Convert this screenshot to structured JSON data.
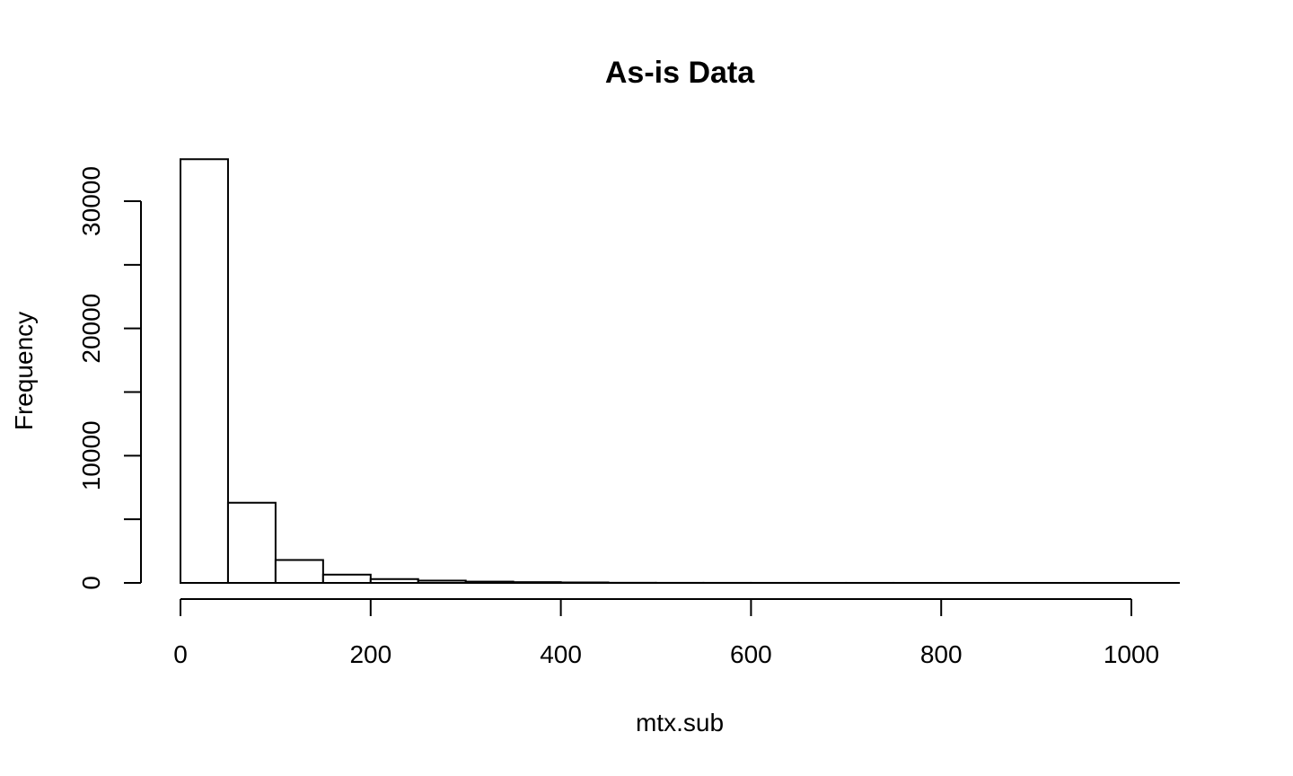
{
  "chart_data": {
    "type": "bar",
    "histogram": true,
    "title": "As-is Data",
    "xlabel": "mtx.sub",
    "ylabel": "Frequency",
    "bin_width": 50,
    "bins": [
      {
        "start": 0,
        "end": 50,
        "count": 33300
      },
      {
        "start": 50,
        "end": 100,
        "count": 6300
      },
      {
        "start": 100,
        "end": 150,
        "count": 1800
      },
      {
        "start": 150,
        "end": 200,
        "count": 650
      },
      {
        "start": 200,
        "end": 250,
        "count": 300
      },
      {
        "start": 250,
        "end": 300,
        "count": 180
      },
      {
        "start": 300,
        "end": 350,
        "count": 100
      },
      {
        "start": 350,
        "end": 400,
        "count": 60
      },
      {
        "start": 400,
        "end": 450,
        "count": 35
      },
      {
        "start": 450,
        "end": 500,
        "count": 10
      },
      {
        "start": 500,
        "end": 550,
        "count": 5
      },
      {
        "start": 550,
        "end": 600,
        "count": 4
      },
      {
        "start": 600,
        "end": 650,
        "count": 3
      },
      {
        "start": 650,
        "end": 700,
        "count": 2
      },
      {
        "start": 700,
        "end": 750,
        "count": 2
      },
      {
        "start": 750,
        "end": 800,
        "count": 1
      },
      {
        "start": 800,
        "end": 850,
        "count": 1
      },
      {
        "start": 850,
        "end": 900,
        "count": 1
      },
      {
        "start": 900,
        "end": 950,
        "count": 1
      },
      {
        "start": 950,
        "end": 1000,
        "count": 1
      },
      {
        "start": 1000,
        "end": 1050,
        "count": 1
      }
    ],
    "xlim": [
      0,
      1050
    ],
    "ylim": [
      0,
      33300
    ],
    "x_ticks": [
      0,
      200,
      400,
      600,
      800,
      1000
    ],
    "y_ticks": [
      0,
      5000,
      10000,
      15000,
      20000,
      25000,
      30000
    ],
    "y_tick_labels": [
      {
        "value": 0,
        "label": "0"
      },
      {
        "value": 10000,
        "label": "10000"
      },
      {
        "value": 20000,
        "label": "20000"
      },
      {
        "value": 30000,
        "label": "30000"
      }
    ],
    "grid": false,
    "legend": "none"
  }
}
